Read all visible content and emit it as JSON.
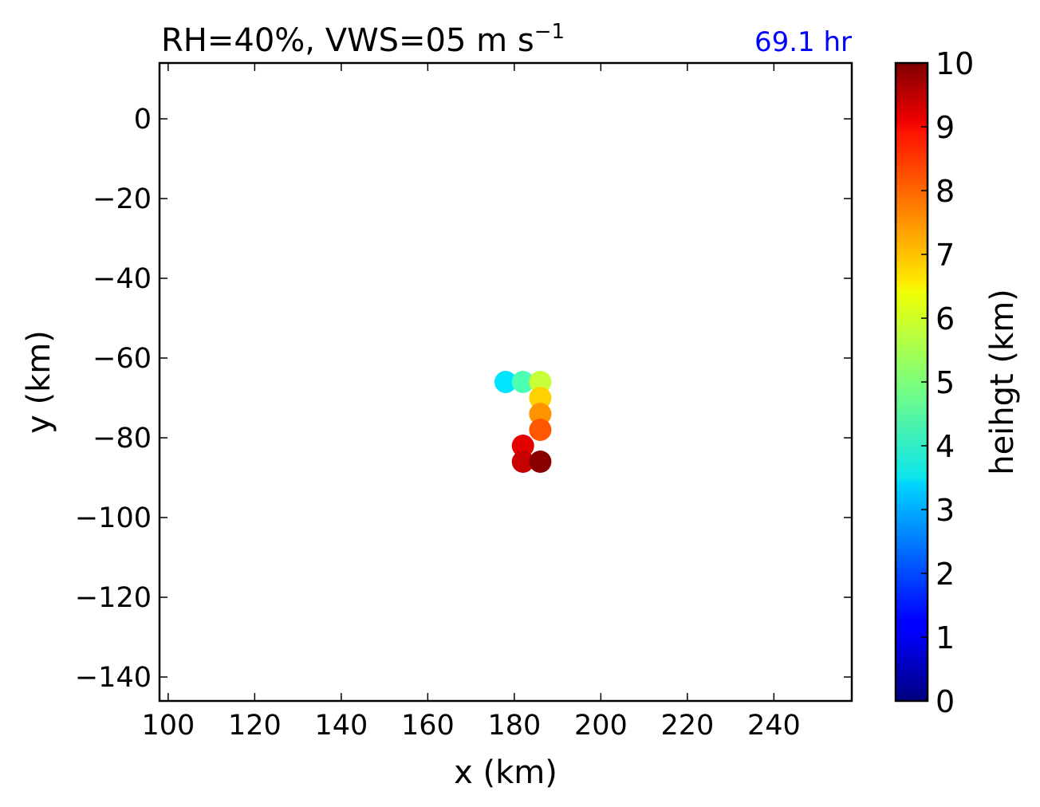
{
  "chart_data": {
    "type": "scatter",
    "title_main": "RH=40%, VWS=05 m s",
    "title_exp": "−1",
    "time_label": "69.1 hr",
    "time_label_color": "#0000ff",
    "xlabel": "x (km)",
    "ylabel": "y (km)",
    "xlim": [
      98,
      258
    ],
    "ylim": [
      -146,
      14
    ],
    "xticks": [
      100,
      120,
      140,
      160,
      180,
      200,
      220,
      240
    ],
    "xtick_labels": [
      "100",
      "120",
      "140",
      "160",
      "180",
      "200",
      "220",
      "240"
    ],
    "yticks": [
      0,
      -20,
      -40,
      -60,
      -80,
      -100,
      -120,
      -140
    ],
    "ytick_labels": [
      "0",
      "−20",
      "−40",
      "−60",
      "−80",
      "−100",
      "−120",
      "−140"
    ],
    "colorbar": {
      "label": "heihgt (km)",
      "range": [
        0,
        10
      ],
      "colormap": "jet",
      "ticks": [
        0,
        1,
        2,
        3,
        4,
        5,
        6,
        7,
        8,
        9,
        10
      ],
      "tick_labels": [
        "0",
        "1",
        "2",
        "3",
        "4",
        "5",
        "6",
        "7",
        "8",
        "9",
        "10"
      ]
    },
    "points": [
      {
        "x": 178,
        "y": -66,
        "height": 3.5
      },
      {
        "x": 182,
        "y": -66,
        "height": 4.5
      },
      {
        "x": 186,
        "y": -66,
        "height": 5.7
      },
      {
        "x": 186,
        "y": -70,
        "height": 6.7
      },
      {
        "x": 186,
        "y": -74,
        "height": 7.3
      },
      {
        "x": 186,
        "y": -78,
        "height": 7.9
      },
      {
        "x": 182,
        "y": -82,
        "height": 9.0
      },
      {
        "x": 182,
        "y": -86,
        "height": 9.3
      },
      {
        "x": 186,
        "y": -86,
        "height": 9.9
      }
    ]
  }
}
